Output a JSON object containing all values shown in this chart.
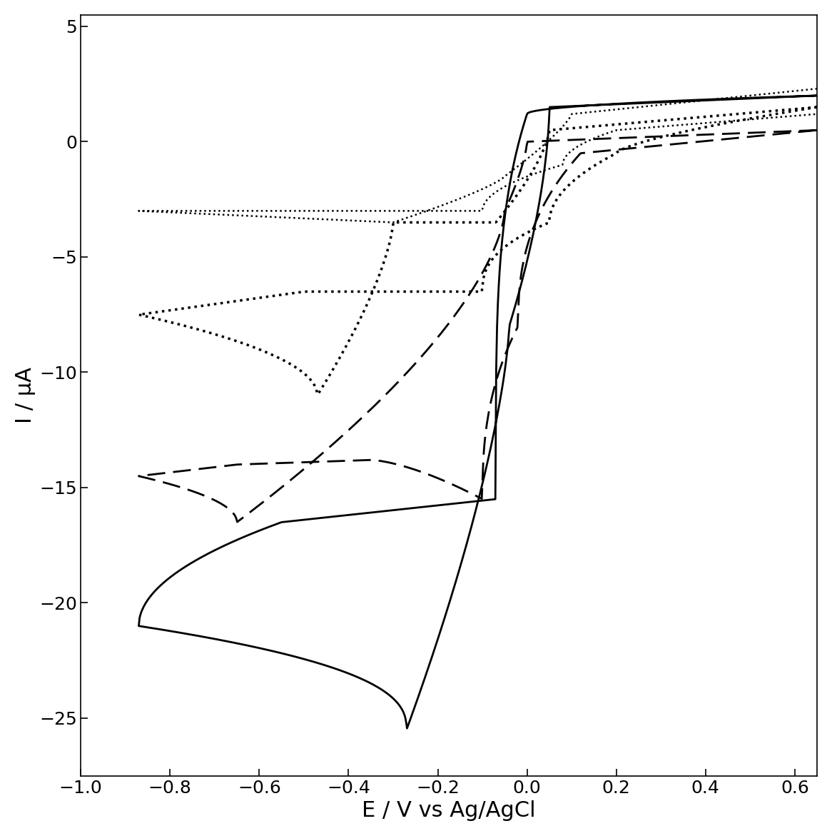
{
  "xlim": [
    -1.0,
    0.65
  ],
  "ylim": [
    -27.5,
    5.5
  ],
  "xlabel": "E / V vs Ag/AgCl",
  "ylabel": "I / μA",
  "xlabel_fontsize": 22,
  "ylabel_fontsize": 22,
  "tick_fontsize": 18,
  "background_color": "#ffffff",
  "xticks": [
    -1.0,
    -0.8,
    -0.6,
    -0.4,
    -0.2,
    0.0,
    0.2,
    0.4,
    0.6
  ],
  "yticks": [
    5,
    0,
    -5,
    -10,
    -15,
    -20,
    -25
  ]
}
